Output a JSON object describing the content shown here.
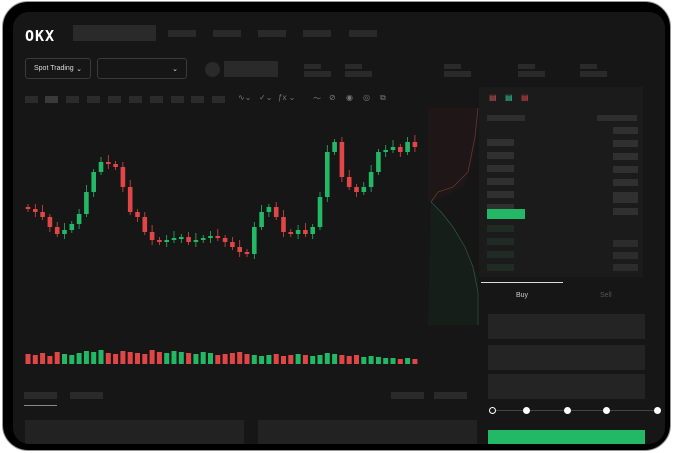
{
  "header": {
    "logo": "OKX"
  },
  "controls": {
    "market_type": "Spot Trading",
    "pair_select": ""
  },
  "order_form": {
    "tabs": [
      {
        "label": "Buy",
        "active": true
      },
      {
        "label": "Sell",
        "active": false
      }
    ],
    "slider_percent": 0
  },
  "colors": {
    "up": "#22b866",
    "down": "#e04646",
    "background": "#161616",
    "panel": "#1b1b1b"
  },
  "icons": [
    "chevron-down-icon",
    "indicator-icon",
    "draw-line-icon",
    "camera-icon",
    "settings-icon",
    "fullscreen-icon",
    "orderbook-both-icon",
    "orderbook-buy-icon",
    "orderbook-sell-icon"
  ],
  "chart": {
    "type": "candlestick",
    "closes": [
      53,
      50,
      45,
      35,
      28,
      32,
      38,
      48,
      70,
      90,
      100,
      98,
      95,
      75,
      50,
      45,
      30,
      22,
      20,
      22,
      24,
      25,
      20,
      22,
      24,
      26,
      24,
      20,
      15,
      10,
      8,
      35,
      50,
      55,
      45,
      30,
      28,
      32,
      28,
      35,
      65,
      110,
      120,
      85,
      75,
      70,
      75,
      90,
      110,
      112,
      115,
      110,
      120,
      115
    ],
    "volumes": [
      10,
      9,
      11,
      8,
      12,
      10,
      9,
      11,
      13,
      12,
      14,
      11,
      10,
      13,
      12,
      11,
      10,
      14,
      12,
      11,
      13,
      12,
      11,
      10,
      12,
      11,
      9,
      10,
      11,
      12,
      10,
      9,
      8,
      9,
      10,
      8,
      9,
      10,
      9,
      8,
      9,
      11,
      10,
      9,
      8,
      9,
      7,
      8,
      7,
      6,
      6,
      5,
      6,
      5
    ]
  }
}
